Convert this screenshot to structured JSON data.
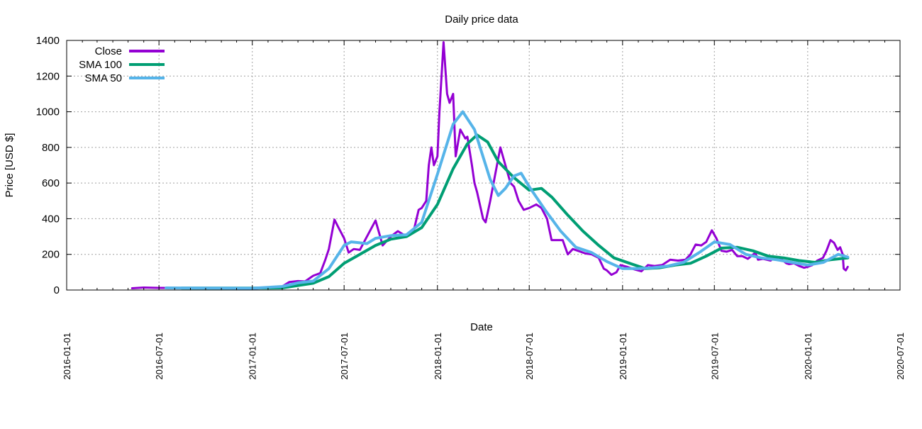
{
  "chart_data": {
    "type": "line",
    "title": "Daily price data",
    "xlabel": "Date",
    "ylabel": "Price [USD $]",
    "xlim": [
      "2016-01-01",
      "2020-07-01"
    ],
    "ylim": [
      0,
      1400
    ],
    "grid": true,
    "legend_position": "top-left",
    "x_ticks": [
      "2016-01-01",
      "2016-07-01",
      "2017-01-01",
      "2017-07-01",
      "2018-01-01",
      "2018-07-01",
      "2019-01-01",
      "2019-07-01",
      "2020-01-01",
      "2020-07-01"
    ],
    "y_ticks": [
      0,
      200,
      400,
      600,
      800,
      1000,
      1200,
      1400
    ],
    "series": [
      {
        "name": "Close",
        "color": "#9400d3",
        "points": [
          [
            "2016-05-09",
            10
          ],
          [
            "2016-06-01",
            14
          ],
          [
            "2016-07-01",
            12
          ],
          [
            "2016-09-01",
            12
          ],
          [
            "2016-11-01",
            11
          ],
          [
            "2017-01-01",
            8
          ],
          [
            "2017-02-01",
            12
          ],
          [
            "2017-03-01",
            20
          ],
          [
            "2017-03-15",
            45
          ],
          [
            "2017-04-01",
            50
          ],
          [
            "2017-04-15",
            48
          ],
          [
            "2017-05-01",
            80
          ],
          [
            "2017-05-15",
            95
          ],
          [
            "2017-05-25",
            170
          ],
          [
            "2017-06-01",
            230
          ],
          [
            "2017-06-12",
            395
          ],
          [
            "2017-06-20",
            350
          ],
          [
            "2017-07-01",
            290
          ],
          [
            "2017-07-10",
            210
          ],
          [
            "2017-07-20",
            230
          ],
          [
            "2017-08-01",
            225
          ],
          [
            "2017-08-15",
            300
          ],
          [
            "2017-09-01",
            390
          ],
          [
            "2017-09-10",
            300
          ],
          [
            "2017-09-15",
            250
          ],
          [
            "2017-10-01",
            300
          ],
          [
            "2017-10-15",
            330
          ],
          [
            "2017-11-01",
            300
          ],
          [
            "2017-11-15",
            330
          ],
          [
            "2017-11-25",
            450
          ],
          [
            "2017-12-01",
            460
          ],
          [
            "2017-12-10",
            500
          ],
          [
            "2017-12-15",
            700
          ],
          [
            "2017-12-20",
            800
          ],
          [
            "2017-12-25",
            700
          ],
          [
            "2018-01-01",
            750
          ],
          [
            "2018-01-05",
            1000
          ],
          [
            "2018-01-13",
            1390
          ],
          [
            "2018-01-20",
            1100
          ],
          [
            "2018-01-25",
            1050
          ],
          [
            "2018-02-01",
            1100
          ],
          [
            "2018-02-06",
            750
          ],
          [
            "2018-02-15",
            900
          ],
          [
            "2018-02-25",
            850
          ],
          [
            "2018-03-01",
            860
          ],
          [
            "2018-03-10",
            700
          ],
          [
            "2018-03-15",
            600
          ],
          [
            "2018-03-20",
            550
          ],
          [
            "2018-04-01",
            400
          ],
          [
            "2018-04-06",
            380
          ],
          [
            "2018-04-15",
            500
          ],
          [
            "2018-04-25",
            650
          ],
          [
            "2018-05-05",
            800
          ],
          [
            "2018-05-15",
            700
          ],
          [
            "2018-05-25",
            600
          ],
          [
            "2018-06-01",
            580
          ],
          [
            "2018-06-10",
            500
          ],
          [
            "2018-06-20",
            450
          ],
          [
            "2018-07-01",
            460
          ],
          [
            "2018-07-15",
            480
          ],
          [
            "2018-07-25",
            460
          ],
          [
            "2018-08-05",
            400
          ],
          [
            "2018-08-14",
            280
          ],
          [
            "2018-08-25",
            280
          ],
          [
            "2018-09-05",
            280
          ],
          [
            "2018-09-15",
            200
          ],
          [
            "2018-09-25",
            230
          ],
          [
            "2018-10-05",
            220
          ],
          [
            "2018-10-20",
            205
          ],
          [
            "2018-11-01",
            200
          ],
          [
            "2018-11-15",
            180
          ],
          [
            "2018-11-25",
            120
          ],
          [
            "2018-12-01",
            110
          ],
          [
            "2018-12-10",
            85
          ],
          [
            "2018-12-20",
            100
          ],
          [
            "2018-12-28",
            140
          ],
          [
            "2019-01-10",
            130
          ],
          [
            "2019-01-25",
            115
          ],
          [
            "2019-02-07",
            105
          ],
          [
            "2019-02-20",
            140
          ],
          [
            "2019-03-05",
            135
          ],
          [
            "2019-03-20",
            140
          ],
          [
            "2019-04-05",
            170
          ],
          [
            "2019-04-20",
            165
          ],
          [
            "2019-05-05",
            170
          ],
          [
            "2019-05-15",
            200
          ],
          [
            "2019-05-25",
            255
          ],
          [
            "2019-06-05",
            250
          ],
          [
            "2019-06-15",
            270
          ],
          [
            "2019-06-26",
            335
          ],
          [
            "2019-07-05",
            290
          ],
          [
            "2019-07-15",
            220
          ],
          [
            "2019-07-25",
            215
          ],
          [
            "2019-08-05",
            225
          ],
          [
            "2019-08-15",
            190
          ],
          [
            "2019-08-25",
            190
          ],
          [
            "2019-09-05",
            175
          ],
          [
            "2019-09-20",
            210
          ],
          [
            "2019-09-25",
            170
          ],
          [
            "2019-10-05",
            175
          ],
          [
            "2019-10-20",
            165
          ],
          [
            "2019-10-26",
            180
          ],
          [
            "2019-11-05",
            185
          ],
          [
            "2019-11-20",
            150
          ],
          [
            "2019-11-25",
            145
          ],
          [
            "2019-12-05",
            150
          ],
          [
            "2019-12-15",
            135
          ],
          [
            "2019-12-25",
            125
          ],
          [
            "2020-01-01",
            130
          ],
          [
            "2020-01-10",
            140
          ],
          [
            "2020-01-20",
            165
          ],
          [
            "2020-01-31",
            180
          ],
          [
            "2020-02-07",
            220
          ],
          [
            "2020-02-15",
            280
          ],
          [
            "2020-02-22",
            265
          ],
          [
            "2020-02-29",
            225
          ],
          [
            "2020-03-05",
            240
          ],
          [
            "2020-03-10",
            200
          ],
          [
            "2020-03-12",
            120
          ],
          [
            "2020-03-16",
            110
          ],
          [
            "2020-03-20",
            130
          ]
        ]
      },
      {
        "name": "SMA 100",
        "color": "#009e73",
        "points": [
          [
            "2016-08-15",
            11
          ],
          [
            "2017-01-01",
            11
          ],
          [
            "2017-03-01",
            12
          ],
          [
            "2017-04-01",
            25
          ],
          [
            "2017-05-01",
            38
          ],
          [
            "2017-06-01",
            75
          ],
          [
            "2017-07-01",
            150
          ],
          [
            "2017-08-01",
            200
          ],
          [
            "2017-09-01",
            250
          ],
          [
            "2017-10-01",
            285
          ],
          [
            "2017-11-01",
            300
          ],
          [
            "2017-12-01",
            350
          ],
          [
            "2018-01-01",
            480
          ],
          [
            "2018-02-01",
            680
          ],
          [
            "2018-03-01",
            820
          ],
          [
            "2018-03-20",
            870
          ],
          [
            "2018-04-10",
            830
          ],
          [
            "2018-05-01",
            720
          ],
          [
            "2018-06-01",
            630
          ],
          [
            "2018-07-01",
            560
          ],
          [
            "2018-07-25",
            570
          ],
          [
            "2018-08-15",
            520
          ],
          [
            "2018-09-15",
            420
          ],
          [
            "2018-10-15",
            330
          ],
          [
            "2018-11-15",
            250
          ],
          [
            "2018-12-15",
            180
          ],
          [
            "2019-01-15",
            150
          ],
          [
            "2019-02-15",
            120
          ],
          [
            "2019-03-15",
            125
          ],
          [
            "2019-04-15",
            140
          ],
          [
            "2019-05-15",
            150
          ],
          [
            "2019-06-15",
            190
          ],
          [
            "2019-07-15",
            235
          ],
          [
            "2019-08-15",
            240
          ],
          [
            "2019-09-15",
            220
          ],
          [
            "2019-10-15",
            190
          ],
          [
            "2019-11-15",
            180
          ],
          [
            "2019-12-15",
            165
          ],
          [
            "2020-01-15",
            155
          ],
          [
            "2020-02-15",
            170
          ],
          [
            "2020-03-20",
            180
          ]
        ]
      },
      {
        "name": "SMA 50",
        "color": "#56b4e9",
        "points": [
          [
            "2016-07-15",
            12
          ],
          [
            "2017-01-01",
            10
          ],
          [
            "2017-03-01",
            20
          ],
          [
            "2017-04-01",
            40
          ],
          [
            "2017-05-01",
            50
          ],
          [
            "2017-06-01",
            120
          ],
          [
            "2017-07-01",
            250
          ],
          [
            "2017-07-15",
            270
          ],
          [
            "2017-08-01",
            265
          ],
          [
            "2017-08-15",
            260
          ],
          [
            "2017-09-01",
            290
          ],
          [
            "2017-10-01",
            305
          ],
          [
            "2017-11-01",
            310
          ],
          [
            "2017-12-01",
            380
          ],
          [
            "2018-01-01",
            650
          ],
          [
            "2018-02-01",
            930
          ],
          [
            "2018-02-20",
            1000
          ],
          [
            "2018-03-15",
            900
          ],
          [
            "2018-04-15",
            620
          ],
          [
            "2018-05-01",
            530
          ],
          [
            "2018-05-15",
            570
          ],
          [
            "2018-06-01",
            640
          ],
          [
            "2018-06-15",
            655
          ],
          [
            "2018-07-01",
            580
          ],
          [
            "2018-08-01",
            450
          ],
          [
            "2018-09-01",
            330
          ],
          [
            "2018-10-01",
            240
          ],
          [
            "2018-11-01",
            210
          ],
          [
            "2018-12-01",
            160
          ],
          [
            "2019-01-01",
            120
          ],
          [
            "2019-02-01",
            120
          ],
          [
            "2019-03-01",
            125
          ],
          [
            "2019-04-01",
            135
          ],
          [
            "2019-05-01",
            155
          ],
          [
            "2019-06-01",
            210
          ],
          [
            "2019-07-01",
            270
          ],
          [
            "2019-08-01",
            255
          ],
          [
            "2019-09-01",
            200
          ],
          [
            "2019-10-01",
            180
          ],
          [
            "2019-11-01",
            170
          ],
          [
            "2019-12-01",
            155
          ],
          [
            "2020-01-01",
            140
          ],
          [
            "2020-02-01",
            155
          ],
          [
            "2020-03-01",
            200
          ],
          [
            "2020-03-20",
            185
          ]
        ]
      }
    ]
  }
}
